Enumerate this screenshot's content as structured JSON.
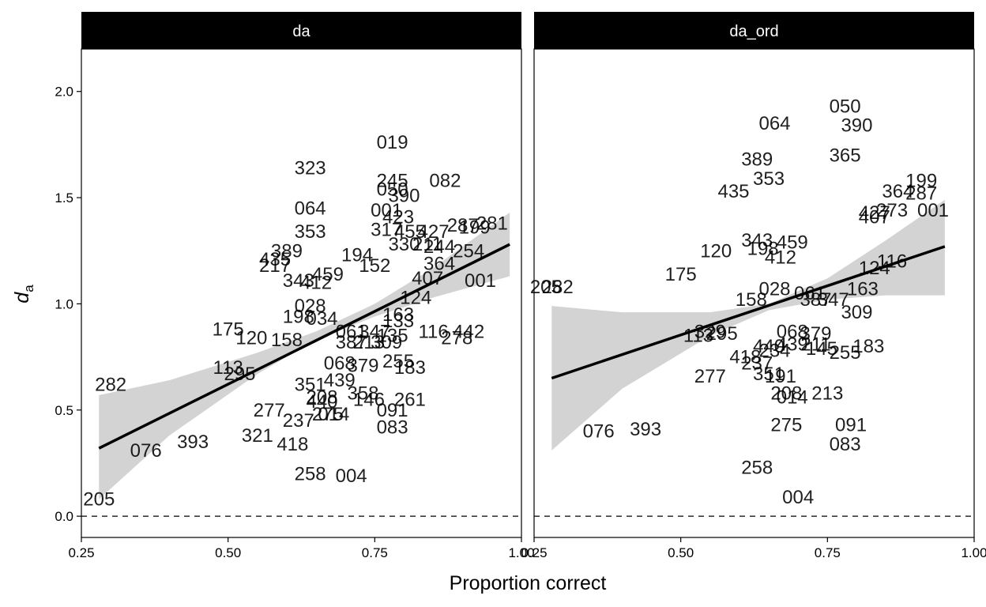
{
  "chart_data": {
    "type": "scatter",
    "xlabel": "Proportion correct",
    "ylabel": "d",
    "ylabel_sub": "a",
    "x_ticks": [
      "0.25",
      "0.50",
      "0.75",
      "1.00"
    ],
    "y_ticks": [
      "0.0",
      "0.5",
      "1.0",
      "1.5",
      "2.0"
    ],
    "xlim": [
      0.25,
      1.0
    ],
    "ylim": [
      -0.1,
      2.2
    ],
    "reference_line": 0,
    "panels": [
      {
        "title": "da",
        "regression": {
          "x0": 0.28,
          "y0": 0.32,
          "x1": 0.98,
          "y1": 1.28
        },
        "ribbon": {
          "x": [
            0.28,
            0.4,
            0.55,
            0.65,
            0.75,
            0.85,
            0.98
          ],
          "lo": [
            0.08,
            0.38,
            0.67,
            0.83,
            0.94,
            1.03,
            1.13
          ],
          "hi": [
            0.57,
            0.64,
            0.77,
            0.87,
            1.0,
            1.17,
            1.43
          ]
        },
        "points": [
          {
            "label": "019",
            "x": 0.78,
            "y": 1.76
          },
          {
            "label": "323",
            "x": 0.64,
            "y": 1.64
          },
          {
            "label": "245",
            "x": 0.78,
            "y": 1.58
          },
          {
            "label": "082",
            "x": 0.87,
            "y": 1.58
          },
          {
            "label": "050",
            "x": 0.78,
            "y": 1.54
          },
          {
            "label": "390",
            "x": 0.8,
            "y": 1.51
          },
          {
            "label": "064",
            "x": 0.64,
            "y": 1.45
          },
          {
            "label": "001",
            "x": 0.77,
            "y": 1.44
          },
          {
            "label": "423",
            "x": 0.79,
            "y": 1.41
          },
          {
            "label": "287",
            "x": 0.9,
            "y": 1.37
          },
          {
            "label": "281",
            "x": 0.95,
            "y": 1.38
          },
          {
            "label": "199",
            "x": 0.92,
            "y": 1.36
          },
          {
            "label": "353",
            "x": 0.64,
            "y": 1.34
          },
          {
            "label": "317",
            "x": 0.77,
            "y": 1.35
          },
          {
            "label": "455",
            "x": 0.81,
            "y": 1.34
          },
          {
            "label": "427",
            "x": 0.85,
            "y": 1.34
          },
          {
            "label": "330",
            "x": 0.8,
            "y": 1.28
          },
          {
            "label": "211",
            "x": 0.84,
            "y": 1.28
          },
          {
            "label": "244",
            "x": 0.86,
            "y": 1.27
          },
          {
            "label": "254",
            "x": 0.91,
            "y": 1.25
          },
          {
            "label": "389",
            "x": 0.6,
            "y": 1.25
          },
          {
            "label": "194",
            "x": 0.72,
            "y": 1.23
          },
          {
            "label": "435",
            "x": 0.58,
            "y": 1.21
          },
          {
            "label": "217",
            "x": 0.58,
            "y": 1.18
          },
          {
            "label": "152",
            "x": 0.75,
            "y": 1.18
          },
          {
            "label": "364",
            "x": 0.86,
            "y": 1.19
          },
          {
            "label": "459",
            "x": 0.67,
            "y": 1.14
          },
          {
            "label": "343",
            "x": 0.62,
            "y": 1.11
          },
          {
            "label": "412",
            "x": 0.65,
            "y": 1.1
          },
          {
            "label": "407",
            "x": 0.84,
            "y": 1.12
          },
          {
            "label": "001",
            "x": 0.93,
            "y": 1.11
          },
          {
            "label": "124",
            "x": 0.82,
            "y": 1.03
          },
          {
            "label": "028",
            "x": 0.64,
            "y": 0.99
          },
          {
            "label": "198",
            "x": 0.62,
            "y": 0.94
          },
          {
            "label": "034",
            "x": 0.66,
            "y": 0.93
          },
          {
            "label": "163",
            "x": 0.79,
            "y": 0.95
          },
          {
            "label": "133",
            "x": 0.79,
            "y": 0.92
          },
          {
            "label": "175",
            "x": 0.5,
            "y": 0.88
          },
          {
            "label": "120",
            "x": 0.54,
            "y": 0.84
          },
          {
            "label": "158",
            "x": 0.6,
            "y": 0.83
          },
          {
            "label": "061",
            "x": 0.71,
            "y": 0.87
          },
          {
            "label": "347",
            "x": 0.75,
            "y": 0.87
          },
          {
            "label": "116",
            "x": 0.85,
            "y": 0.87
          },
          {
            "label": "442",
            "x": 0.91,
            "y": 0.87
          },
          {
            "label": "278",
            "x": 0.89,
            "y": 0.84
          },
          {
            "label": "387",
            "x": 0.71,
            "y": 0.82
          },
          {
            "label": "213",
            "x": 0.74,
            "y": 0.82
          },
          {
            "label": "309",
            "x": 0.77,
            "y": 0.82
          },
          {
            "label": "135",
            "x": 0.78,
            "y": 0.85
          },
          {
            "label": "113",
            "x": 0.5,
            "y": 0.7
          },
          {
            "label": "295",
            "x": 0.52,
            "y": 0.67
          },
          {
            "label": "068",
            "x": 0.69,
            "y": 0.72
          },
          {
            "label": "379",
            "x": 0.73,
            "y": 0.71
          },
          {
            "label": "255",
            "x": 0.79,
            "y": 0.73
          },
          {
            "label": "183",
            "x": 0.81,
            "y": 0.7
          },
          {
            "label": "282",
            "x": 0.3,
            "y": 0.62
          },
          {
            "label": "351",
            "x": 0.64,
            "y": 0.62
          },
          {
            "label": "439",
            "x": 0.69,
            "y": 0.64
          },
          {
            "label": "358",
            "x": 0.73,
            "y": 0.58
          },
          {
            "label": "208",
            "x": 0.66,
            "y": 0.56
          },
          {
            "label": "440",
            "x": 0.66,
            "y": 0.54
          },
          {
            "label": "146",
            "x": 0.74,
            "y": 0.55
          },
          {
            "label": "261",
            "x": 0.81,
            "y": 0.55
          },
          {
            "label": "091",
            "x": 0.78,
            "y": 0.5
          },
          {
            "label": "277",
            "x": 0.57,
            "y": 0.5
          },
          {
            "label": "275",
            "x": 0.67,
            "y": 0.48
          },
          {
            "label": "014",
            "x": 0.68,
            "y": 0.48
          },
          {
            "label": "237",
            "x": 0.62,
            "y": 0.45
          },
          {
            "label": "083",
            "x": 0.78,
            "y": 0.42
          },
          {
            "label": "321",
            "x": 0.55,
            "y": 0.38
          },
          {
            "label": "393",
            "x": 0.44,
            "y": 0.35
          },
          {
            "label": "418",
            "x": 0.61,
            "y": 0.34
          },
          {
            "label": "076",
            "x": 0.36,
            "y": 0.31
          },
          {
            "label": "258",
            "x": 0.64,
            "y": 0.2
          },
          {
            "label": "004",
            "x": 0.71,
            "y": 0.19
          },
          {
            "label": "205",
            "x": 0.28,
            "y": 0.08
          }
        ]
      },
      {
        "title": "da_ord",
        "regression": {
          "x0": 0.28,
          "y0": 0.65,
          "x1": 0.95,
          "y1": 1.27
        },
        "ribbon": {
          "x": [
            0.28,
            0.4,
            0.55,
            0.65,
            0.75,
            0.85,
            0.95
          ],
          "lo": [
            0.31,
            0.6,
            0.85,
            0.97,
            1.02,
            1.04,
            1.04
          ],
          "hi": [
            0.99,
            0.96,
            0.96,
            1.0,
            1.12,
            1.3,
            1.49
          ]
        },
        "points": [
          {
            "label": "050",
            "x": 0.78,
            "y": 1.93
          },
          {
            "label": "390",
            "x": 0.8,
            "y": 1.84
          },
          {
            "label": "064",
            "x": 0.66,
            "y": 1.85
          },
          {
            "label": "365",
            "x": 0.78,
            "y": 1.7
          },
          {
            "label": "389",
            "x": 0.63,
            "y": 1.68
          },
          {
            "label": "353",
            "x": 0.65,
            "y": 1.59
          },
          {
            "label": "199",
            "x": 0.91,
            "y": 1.58
          },
          {
            "label": "435",
            "x": 0.59,
            "y": 1.53
          },
          {
            "label": "364",
            "x": 0.87,
            "y": 1.53
          },
          {
            "label": "287",
            "x": 0.91,
            "y": 1.52
          },
          {
            "label": "427",
            "x": 0.83,
            "y": 1.43
          },
          {
            "label": "273",
            "x": 0.86,
            "y": 1.44
          },
          {
            "label": "407",
            "x": 0.83,
            "y": 1.41
          },
          {
            "label": "001",
            "x": 0.93,
            "y": 1.44
          },
          {
            "label": "343",
            "x": 0.63,
            "y": 1.3
          },
          {
            "label": "459",
            "x": 0.69,
            "y": 1.29
          },
          {
            "label": "198",
            "x": 0.64,
            "y": 1.26
          },
          {
            "label": "120",
            "x": 0.56,
            "y": 1.25
          },
          {
            "label": "412",
            "x": 0.67,
            "y": 1.22
          },
          {
            "label": "116",
            "x": 0.86,
            "y": 1.2
          },
          {
            "label": "124",
            "x": 0.83,
            "y": 1.17
          },
          {
            "label": "175",
            "x": 0.5,
            "y": 1.14
          },
          {
            "label": "205",
            "x": 0.27,
            "y": 1.08
          },
          {
            "label": "282",
            "x": 0.29,
            "y": 1.08
          },
          {
            "label": "028",
            "x": 0.66,
            "y": 1.07
          },
          {
            "label": "163",
            "x": 0.81,
            "y": 1.07
          },
          {
            "label": "061",
            "x": 0.72,
            "y": 1.05
          },
          {
            "label": "158",
            "x": 0.62,
            "y": 1.02
          },
          {
            "label": "387",
            "x": 0.73,
            "y": 1.02
          },
          {
            "label": "347",
            "x": 0.76,
            "y": 1.02
          },
          {
            "label": "309",
            "x": 0.8,
            "y": 0.96
          },
          {
            "label": "113",
            "x": 0.53,
            "y": 0.85
          },
          {
            "label": "329",
            "x": 0.55,
            "y": 0.87
          },
          {
            "label": "295",
            "x": 0.57,
            "y": 0.86
          },
          {
            "label": "068",
            "x": 0.69,
            "y": 0.87
          },
          {
            "label": "379",
            "x": 0.73,
            "y": 0.86
          },
          {
            "label": "440",
            "x": 0.65,
            "y": 0.8
          },
          {
            "label": "439",
            "x": 0.69,
            "y": 0.81
          },
          {
            "label": "211",
            "x": 0.73,
            "y": 0.81
          },
          {
            "label": "183",
            "x": 0.82,
            "y": 0.8
          },
          {
            "label": "234",
            "x": 0.66,
            "y": 0.78
          },
          {
            "label": "145",
            "x": 0.74,
            "y": 0.79
          },
          {
            "label": "255",
            "x": 0.78,
            "y": 0.77
          },
          {
            "label": "418",
            "x": 0.61,
            "y": 0.75
          },
          {
            "label": "237",
            "x": 0.63,
            "y": 0.72
          },
          {
            "label": "351",
            "x": 0.65,
            "y": 0.67
          },
          {
            "label": "191",
            "x": 0.67,
            "y": 0.66
          },
          {
            "label": "277",
            "x": 0.55,
            "y": 0.66
          },
          {
            "label": "208",
            "x": 0.68,
            "y": 0.58
          },
          {
            "label": "213",
            "x": 0.75,
            "y": 0.58
          },
          {
            "label": "014",
            "x": 0.69,
            "y": 0.56
          },
          {
            "label": "275",
            "x": 0.68,
            "y": 0.43
          },
          {
            "label": "091",
            "x": 0.79,
            "y": 0.43
          },
          {
            "label": "083",
            "x": 0.78,
            "y": 0.34
          },
          {
            "label": "076",
            "x": 0.36,
            "y": 0.4
          },
          {
            "label": "393",
            "x": 0.44,
            "y": 0.41
          },
          {
            "label": "258",
            "x": 0.63,
            "y": 0.23
          },
          {
            "label": "004",
            "x": 0.7,
            "y": 0.09
          }
        ]
      }
    ]
  }
}
